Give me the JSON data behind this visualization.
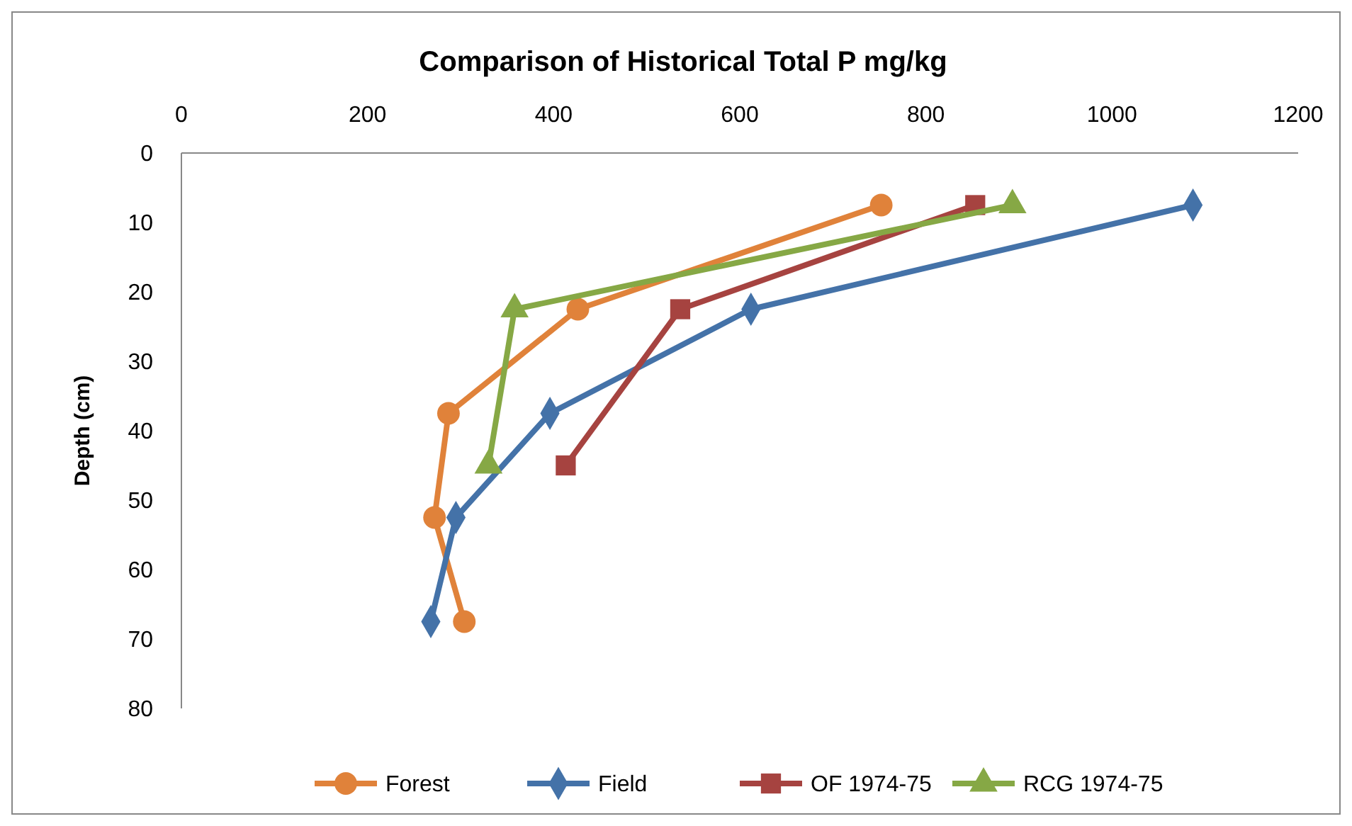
{
  "chart_data": {
    "type": "line",
    "title": "Comparison of Historical Total P mg/kg",
    "ylabel": "Depth (cm)",
    "xlim": [
      0,
      1200
    ],
    "xticks": [
      0,
      200,
      400,
      600,
      800,
      1000,
      1200
    ],
    "ylim": [
      80,
      0
    ],
    "yticks": [
      0,
      10,
      20,
      30,
      40,
      50,
      60,
      70,
      80
    ],
    "grid": false,
    "legend": "bottom",
    "line_style": "solid",
    "series": [
      {
        "name": "Forest",
        "color": "#e0823a",
        "marker": "circle",
        "x": [
          752,
          426,
          287,
          272,
          304
        ],
        "values": [
          7.5,
          22.5,
          37.5,
          52.5,
          67.5
        ]
      },
      {
        "name": "Field",
        "color": "#4472a8",
        "marker": "diamond",
        "x": [
          1087,
          612,
          396,
          295,
          268
        ],
        "values": [
          7.5,
          22.5,
          37.5,
          52.5,
          67.5
        ]
      },
      {
        "name": "OF 1974-75",
        "color": "#a64340",
        "marker": "square",
        "x": [
          853,
          536,
          413
        ],
        "values": [
          7.5,
          22.5,
          45
        ]
      },
      {
        "name": "RCG 1974-75",
        "color": "#86a845",
        "marker": "triangle",
        "x": [
          893,
          358,
          330
        ],
        "values": [
          7.5,
          22.5,
          45
        ]
      }
    ]
  }
}
